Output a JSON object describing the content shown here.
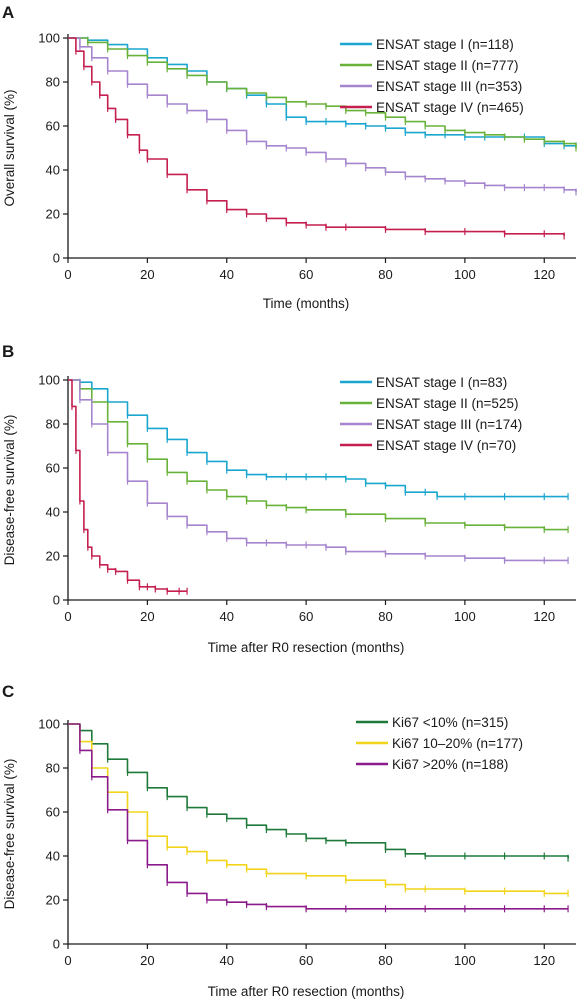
{
  "chart_data": [
    {
      "type": "line",
      "panel": "A",
      "xlabel": "Time (months)",
      "ylabel": "Overall survival (%)",
      "xlim": [
        0,
        128
      ],
      "ylim": [
        0,
        100
      ],
      "xticks": [
        0,
        20,
        40,
        60,
        80,
        100,
        120
      ],
      "yticks": [
        0,
        20,
        40,
        60,
        80,
        100
      ],
      "legend_position": "top-right",
      "grid": false,
      "series": [
        {
          "name": "ENSAT stage I (n=118)",
          "color": "#1aa6cf",
          "x": [
            0,
            5,
            10,
            15,
            20,
            25,
            30,
            35,
            40,
            45,
            50,
            55,
            60,
            65,
            70,
            75,
            80,
            85,
            90,
            95,
            100,
            105,
            110,
            115,
            120,
            125,
            128
          ],
          "y": [
            100,
            99,
            97,
            95,
            91,
            88,
            85,
            80,
            77,
            74,
            70,
            64,
            62,
            62,
            61,
            60,
            59,
            57,
            56,
            56,
            55,
            55,
            55,
            55,
            52,
            51,
            51
          ]
        },
        {
          "name": "ENSAT stage II (n=777)",
          "color": "#69b23a",
          "x": [
            0,
            5,
            10,
            15,
            20,
            25,
            30,
            35,
            40,
            45,
            50,
            55,
            60,
            65,
            70,
            75,
            80,
            85,
            90,
            95,
            100,
            105,
            110,
            115,
            120,
            125,
            128
          ],
          "y": [
            100,
            98,
            95,
            92,
            89,
            86,
            83,
            80,
            77,
            75,
            73,
            71,
            70,
            69,
            67,
            66,
            64,
            62,
            60,
            58,
            57,
            56,
            55,
            54,
            53,
            52,
            50
          ]
        },
        {
          "name": "ENSAT stage III (n=353)",
          "color": "#a685cf",
          "x": [
            0,
            3,
            6,
            10,
            15,
            20,
            25,
            30,
            35,
            40,
            45,
            50,
            55,
            60,
            65,
            70,
            75,
            80,
            85,
            90,
            95,
            100,
            105,
            110,
            115,
            120,
            125,
            128
          ],
          "y": [
            100,
            96,
            91,
            85,
            79,
            74,
            70,
            67,
            63,
            58,
            53,
            51,
            50,
            48,
            45,
            43,
            41,
            39,
            37,
            36,
            35,
            34,
            33,
            32,
            32,
            32,
            31,
            30
          ]
        },
        {
          "name": "ENSAT stage IV (n=465)",
          "color": "#c41f4e",
          "x": [
            0,
            2,
            4,
            6,
            8,
            10,
            12,
            15,
            18,
            20,
            25,
            30,
            35,
            40,
            45,
            50,
            55,
            60,
            65,
            70,
            80,
            90,
            100,
            110,
            120,
            125
          ],
          "y": [
            100,
            94,
            87,
            80,
            74,
            68,
            63,
            56,
            49,
            45,
            38,
            31,
            26,
            22,
            20,
            18,
            16,
            15,
            14,
            14,
            13,
            12,
            12,
            11,
            11,
            10
          ]
        }
      ]
    },
    {
      "type": "line",
      "panel": "B",
      "xlabel": "Time after R0 resection (months)",
      "ylabel": "Disease-free survival (%)",
      "xlim": [
        0,
        128
      ],
      "ylim": [
        0,
        100
      ],
      "xticks": [
        0,
        20,
        40,
        60,
        80,
        100,
        120
      ],
      "yticks": [
        0,
        20,
        40,
        60,
        80,
        100
      ],
      "legend_position": "top-right",
      "grid": false,
      "series": [
        {
          "name": "ENSAT stage I (n=83)",
          "color": "#1aa6cf",
          "x": [
            0,
            3,
            6,
            10,
            15,
            20,
            25,
            30,
            35,
            40,
            45,
            50,
            55,
            60,
            65,
            70,
            75,
            80,
            85,
            90,
            93,
            100,
            110,
            120,
            126
          ],
          "y": [
            100,
            99,
            96,
            90,
            84,
            78,
            73,
            67,
            63,
            59,
            57,
            56,
            56,
            56,
            56,
            55,
            53,
            52,
            49,
            49,
            47,
            47,
            47,
            47,
            47
          ]
        },
        {
          "name": "ENSAT stage II (n=525)",
          "color": "#69b23a",
          "x": [
            0,
            3,
            6,
            10,
            15,
            20,
            25,
            30,
            35,
            40,
            45,
            50,
            55,
            60,
            70,
            80,
            90,
            100,
            110,
            120,
            126
          ],
          "y": [
            100,
            96,
            90,
            81,
            71,
            64,
            58,
            54,
            50,
            47,
            45,
            43,
            42,
            41,
            39,
            37,
            35,
            34,
            33,
            32,
            32
          ]
        },
        {
          "name": "ENSAT stage III (n=174)",
          "color": "#a685cf",
          "x": [
            0,
            3,
            6,
            10,
            15,
            20,
            25,
            30,
            35,
            40,
            45,
            50,
            55,
            60,
            65,
            70,
            80,
            90,
            100,
            110,
            120,
            126
          ],
          "y": [
            100,
            91,
            80,
            67,
            54,
            44,
            38,
            34,
            31,
            28,
            26,
            26,
            25,
            25,
            24,
            22,
            21,
            20,
            19,
            18,
            18,
            18
          ]
        },
        {
          "name": "ENSAT stage IV (n=70)",
          "color": "#c41f4e",
          "x": [
            0,
            1,
            2,
            3,
            4,
            5,
            6,
            8,
            10,
            12,
            15,
            18,
            20,
            22,
            25,
            28,
            30
          ],
          "y": [
            100,
            88,
            68,
            45,
            32,
            24,
            20,
            16,
            14,
            13,
            9,
            6,
            6,
            5,
            4,
            4,
            4
          ]
        }
      ]
    },
    {
      "type": "line",
      "panel": "C",
      "xlabel": "Time after R0 resection (months)",
      "ylabel": "Disease-free survival (%)",
      "xlim": [
        0,
        128
      ],
      "ylim": [
        0,
        100
      ],
      "xticks": [
        0,
        20,
        40,
        60,
        80,
        100,
        120
      ],
      "yticks": [
        0,
        20,
        40,
        60,
        80,
        100
      ],
      "legend_position": "top-right",
      "grid": false,
      "series": [
        {
          "name": "Ki67 <10% (n=315)",
          "color": "#1f7a3a",
          "x": [
            0,
            3,
            6,
            10,
            15,
            20,
            25,
            30,
            35,
            40,
            45,
            50,
            55,
            60,
            65,
            70,
            80,
            85,
            90,
            100,
            110,
            120,
            126
          ],
          "y": [
            100,
            97,
            91,
            84,
            78,
            71,
            67,
            62,
            59,
            57,
            54,
            52,
            50,
            48,
            47,
            46,
            43,
            41,
            40,
            40,
            40,
            40,
            39
          ]
        },
        {
          "name": "Ki67 10–20% (n=177)",
          "color": "#f2d51a",
          "x": [
            0,
            3,
            6,
            10,
            15,
            20,
            25,
            30,
            35,
            40,
            45,
            50,
            60,
            70,
            80,
            85,
            90,
            100,
            110,
            120,
            126
          ],
          "y": [
            100,
            92,
            80,
            69,
            60,
            49,
            44,
            42,
            38,
            36,
            34,
            32,
            31,
            29,
            27,
            25,
            25,
            24,
            24,
            23,
            23
          ]
        },
        {
          "name": "Ki67 >20% (n=188)",
          "color": "#8b1a8a",
          "x": [
            0,
            3,
            6,
            10,
            15,
            20,
            25,
            30,
            35,
            40,
            45,
            50,
            60,
            70,
            80,
            90,
            100,
            110,
            120,
            126
          ],
          "y": [
            100,
            88,
            76,
            61,
            47,
            36,
            28,
            23,
            20,
            19,
            18,
            17,
            16,
            16,
            16,
            16,
            16,
            16,
            16,
            16
          ]
        }
      ]
    }
  ]
}
